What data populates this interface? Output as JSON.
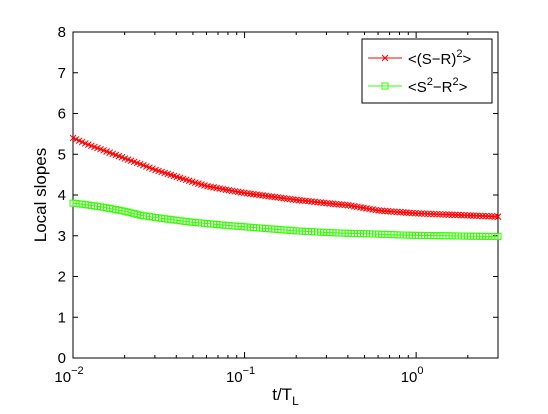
{
  "chart_data": {
    "type": "line",
    "xscale": "log",
    "xlim": [
      0.01,
      3
    ],
    "ylim": [
      0,
      8
    ],
    "grid": false,
    "legend_position": "top-right",
    "xlabel": "t/T",
    "xlabel_sub": "L",
    "ylabel": "Local slopes",
    "yticks": [
      0,
      1,
      2,
      3,
      4,
      5,
      6,
      7,
      8
    ],
    "ytick_labels": [
      "0",
      "1",
      "2",
      "3",
      "4",
      "5",
      "6",
      "7",
      "8"
    ],
    "xticks": [
      0.01,
      0.1,
      1
    ],
    "xtick_base": "10",
    "xtick_exponents": [
      "−2",
      "−1",
      "0"
    ],
    "series": [
      {
        "name": "<(S−R)²>",
        "legend_parts": [
          "<(S−R)",
          "2",
          ">"
        ],
        "color": "#ff0000",
        "marker": "x",
        "x": [
          0.01,
          0.012,
          0.015,
          0.02,
          0.025,
          0.03,
          0.04,
          0.05,
          0.06,
          0.08,
          0.1,
          0.15,
          0.2,
          0.3,
          0.4,
          0.5,
          0.6,
          0.8,
          1.0,
          1.5,
          2.0,
          3.0
        ],
        "y": [
          5.4,
          5.25,
          5.1,
          4.9,
          4.75,
          4.62,
          4.45,
          4.32,
          4.22,
          4.12,
          4.05,
          3.95,
          3.88,
          3.8,
          3.75,
          3.68,
          3.62,
          3.58,
          3.55,
          3.52,
          3.5,
          3.47
        ]
      },
      {
        "name": "<S²−R²>",
        "legend_parts": [
          "<S",
          "2",
          "−R",
          "2",
          ">"
        ],
        "color": "#33ff00",
        "marker": "square",
        "x": [
          0.01,
          0.012,
          0.015,
          0.02,
          0.025,
          0.03,
          0.04,
          0.05,
          0.06,
          0.08,
          0.1,
          0.15,
          0.2,
          0.3,
          0.4,
          0.5,
          0.6,
          0.8,
          1.0,
          1.5,
          2.0,
          3.0
        ],
        "y": [
          3.8,
          3.76,
          3.7,
          3.6,
          3.5,
          3.45,
          3.38,
          3.33,
          3.3,
          3.25,
          3.22,
          3.16,
          3.12,
          3.08,
          3.06,
          3.05,
          3.04,
          3.02,
          3.01,
          3.0,
          2.99,
          2.98
        ]
      }
    ]
  }
}
